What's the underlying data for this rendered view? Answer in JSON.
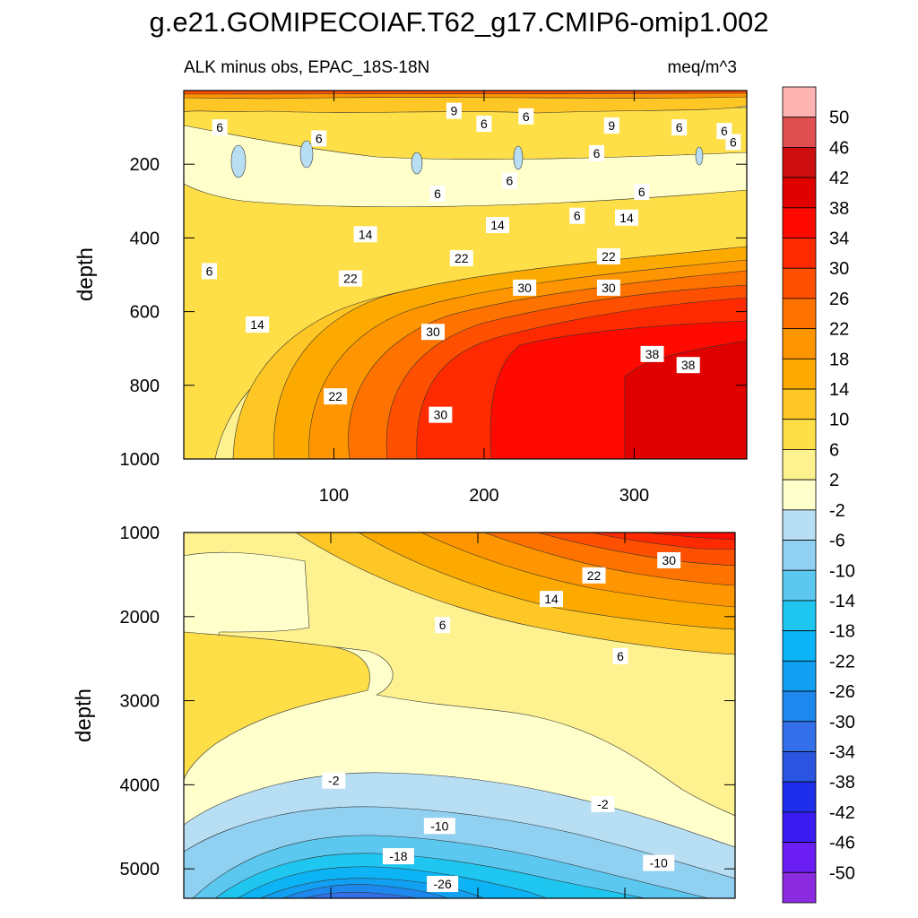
{
  "title": "g.e21.GOMIPECOIAF.T62_g17.CMIP6-omip1.002",
  "colors": {
    "levels": [
      "#8B2BE0",
      "#6A1EF2",
      "#3A1CF2",
      "#1E2EEB",
      "#2B55E0",
      "#3470EA",
      "#1E88EE",
      "#12A0F2",
      "#0CB4F6",
      "#1EC6F0",
      "#5CC8F0",
      "#90D0F0",
      "#B8DEF4",
      "#FFFFCC",
      "#FEF190",
      "#FEDF48",
      "#FEC726",
      "#FDAA00",
      "#FF9500",
      "#FE7200",
      "#FF4F00",
      "#FF2A00",
      "#FE0A00",
      "#E00000",
      "#CC0E0E",
      "#E05050",
      "#FFB4B4"
    ]
  },
  "chart_data": [
    {
      "type": "filled-contour",
      "panel": "upper",
      "left_title": "ALK minus obs, EPAC_18S-18N",
      "right_title": "meq/m^3",
      "xlabel": "",
      "ylabel": "depth",
      "xlim": [
        0,
        375
      ],
      "ylim": [
        1000,
        0
      ],
      "xticks": [
        100,
        200,
        300
      ],
      "yticks": [
        200,
        400,
        600,
        800,
        1000
      ],
      "contour_labels": [
        {
          "text": "6",
          "x": 228,
          "y": 70
        },
        {
          "text": "6",
          "x": 360,
          "y": 110
        },
        {
          "text": "6",
          "x": 275,
          "y": 170
        },
        {
          "text": "9",
          "x": 180,
          "y": 55
        },
        {
          "text": "6",
          "x": 330,
          "y": 100
        },
        {
          "text": "6",
          "x": 24,
          "y": 100
        },
        {
          "text": "6",
          "x": 90,
          "y": 130
        },
        {
          "text": "6",
          "x": 200,
          "y": 90
        },
        {
          "text": "9",
          "x": 285,
          "y": 95
        },
        {
          "text": "6",
          "x": 366,
          "y": 140
        },
        {
          "text": "6",
          "x": 169,
          "y": 280
        },
        {
          "text": "6",
          "x": 262,
          "y": 340
        },
        {
          "text": "6",
          "x": 217,
          "y": 245
        },
        {
          "text": "6",
          "x": 305,
          "y": 275
        },
        {
          "text": "6",
          "x": 17,
          "y": 490
        },
        {
          "text": "14",
          "x": 121,
          "y": 390
        },
        {
          "text": "14",
          "x": 209,
          "y": 365
        },
        {
          "text": "14",
          "x": 295,
          "y": 345
        },
        {
          "text": "22",
          "x": 185,
          "y": 455
        },
        {
          "text": "22",
          "x": 283,
          "y": 450
        },
        {
          "text": "22",
          "x": 111,
          "y": 510
        },
        {
          "text": "30",
          "x": 227,
          "y": 535
        },
        {
          "text": "30",
          "x": 283,
          "y": 535
        },
        {
          "text": "14",
          "x": 49,
          "y": 635
        },
        {
          "text": "30",
          "x": 166,
          "y": 655
        },
        {
          "text": "38",
          "x": 312,
          "y": 715
        },
        {
          "text": "38",
          "x": 336,
          "y": 745
        },
        {
          "text": "22",
          "x": 101,
          "y": 830
        },
        {
          "text": "30",
          "x": 171,
          "y": 880
        }
      ]
    },
    {
      "type": "filled-contour",
      "panel": "lower",
      "xlabel": "",
      "ylabel": "depth",
      "xlim": [
        0,
        375
      ],
      "ylim": [
        5350,
        1000
      ],
      "yticks": [
        1000,
        2000,
        3000,
        4000,
        5000
      ],
      "contour_labels": [
        {
          "text": "30",
          "x": 330,
          "y": 1330
        },
        {
          "text": "22",
          "x": 279,
          "y": 1510
        },
        {
          "text": "14",
          "x": 250,
          "y": 1790
        },
        {
          "text": "6",
          "x": 176,
          "y": 2100
        },
        {
          "text": "6",
          "x": 297,
          "y": 2470
        },
        {
          "text": "-2",
          "x": 102,
          "y": 3950
        },
        {
          "text": "-2",
          "x": 285,
          "y": 4230
        },
        {
          "text": "-10",
          "x": 174,
          "y": 4490
        },
        {
          "text": "-18",
          "x": 146,
          "y": 4850
        },
        {
          "text": "-10",
          "x": 323,
          "y": 4930
        },
        {
          "text": "-26",
          "x": 176,
          "y": 5180
        }
      ]
    },
    {
      "type": "colorbar",
      "labels": [
        "50",
        "46",
        "42",
        "38",
        "34",
        "30",
        "26",
        "22",
        "18",
        "14",
        "10",
        "6",
        "2",
        "-2",
        "-6",
        "-10",
        "-14",
        "-18",
        "-22",
        "-26",
        "-30",
        "-34",
        "-38",
        "-42",
        "-46",
        "-50"
      ]
    }
  ]
}
